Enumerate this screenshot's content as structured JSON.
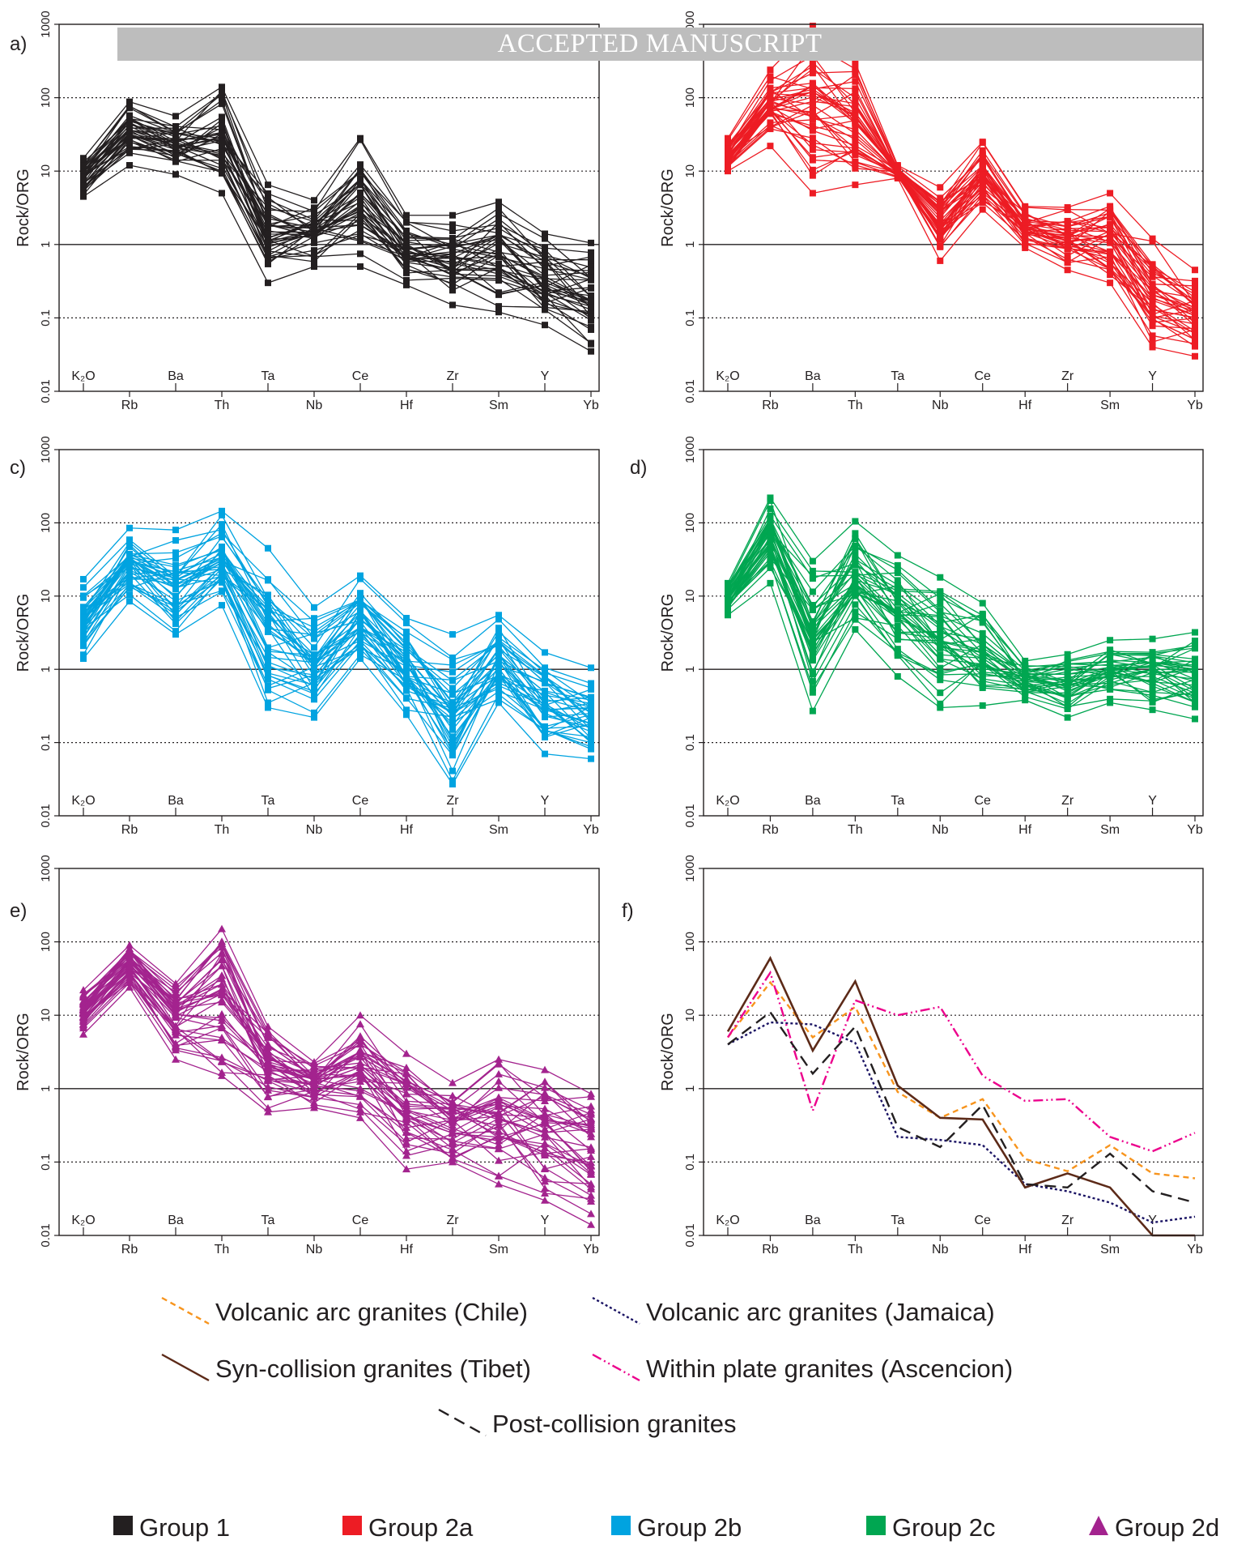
{
  "banner": "ACCEPTED MANUSCRIPT",
  "watermark": "ACCEPTED MANUSCRIPT",
  "elements": [
    "K2O",
    "Rb",
    "Ba",
    "Th",
    "Ta",
    "Nb",
    "Ce",
    "Hf",
    "Zr",
    "Sm",
    "Y",
    "Yb"
  ],
  "elements_display": [
    "K₂O",
    "Rb",
    "Ba",
    "Th",
    "Ta",
    "Nb",
    "Ce",
    "Hf",
    "Zr",
    "Sm",
    "Y",
    "Yb"
  ],
  "chart_data": [
    {
      "panel": "a)",
      "type": "line",
      "ylabel": "Rock/ORG",
      "yscale": "log",
      "ylim": [
        0.01,
        1000
      ],
      "yticks": [
        "0.01",
        "0.1",
        "1",
        "10",
        "100",
        "1000"
      ],
      "group": "Group 1",
      "color": "#231f20",
      "marker": "square",
      "envelope": {
        "upper": [
          15,
          88,
          56,
          140,
          6.5,
          4,
          28,
          2.5,
          2.5,
          3.8,
          1.4,
          1.05
        ],
        "lower": [
          4.5,
          12,
          9,
          5,
          0.3,
          0.5,
          0.5,
          0.28,
          0.15,
          0.12,
          0.08,
          0.035
        ]
      }
    },
    {
      "panel": "b)",
      "type": "line",
      "ylabel": "Rock/ORG",
      "yscale": "log",
      "ylim": [
        0.01,
        1000
      ],
      "yticks": [
        "0.01",
        "0.1",
        "1",
        "10",
        "100",
        "1000"
      ],
      "group": "Group 2a",
      "color": "#ed1c24",
      "marker": "square",
      "envelope": {
        "upper": [
          28,
          240,
          950,
          300,
          12,
          6,
          25,
          3.3,
          3.2,
          5,
          1.2,
          0.45
        ],
        "lower": [
          10,
          22,
          5,
          6.5,
          8,
          0.6,
          3,
          0.9,
          0.45,
          0.3,
          0.04,
          0.03
        ]
      }
    },
    {
      "panel": "c)",
      "type": "line",
      "ylabel": "Rock/ORG",
      "yscale": "log",
      "ylim": [
        0.01,
        1000
      ],
      "yticks": [
        "0.01",
        "0.1",
        "1",
        "10",
        "100",
        "1000"
      ],
      "group": "Group 2b",
      "color": "#00a3e0",
      "marker": "square",
      "envelope": {
        "upper": [
          17,
          85,
          80,
          145,
          45,
          7,
          19,
          5,
          3,
          5.5,
          1.7,
          1.05
        ],
        "lower": [
          1.4,
          8.5,
          3,
          7.5,
          0.3,
          0.22,
          1.4,
          0.24,
          0.027,
          0.35,
          0.07,
          0.06
        ]
      }
    },
    {
      "panel": "d)",
      "type": "line",
      "ylabel": "Rock/ORG",
      "yscale": "log",
      "ylim": [
        0.01,
        1000
      ],
      "yticks": [
        "0.01",
        "0.1",
        "1",
        "10",
        "100",
        "1000"
      ],
      "group": "Group 2c",
      "color": "#00a651",
      "marker": "square",
      "envelope": {
        "upper": [
          15,
          220,
          30,
          105,
          36,
          18,
          8,
          1.3,
          1.6,
          2.5,
          2.6,
          3.2
        ],
        "lower": [
          5.5,
          15,
          0.27,
          3.5,
          0.8,
          0.3,
          0.32,
          0.38,
          0.22,
          0.35,
          0.28,
          0.21
        ]
      }
    },
    {
      "panel": "e)",
      "type": "line",
      "ylabel": "Rock/ORG",
      "yscale": "log",
      "ylim": [
        0.01,
        1000
      ],
      "yticks": [
        "0.01",
        "0.1",
        "1",
        "10",
        "100",
        "1000"
      ],
      "group": "Group 2d",
      "color": "#a3238e",
      "marker": "triangle",
      "envelope": {
        "upper": [
          22,
          90,
          27,
          150,
          7,
          2.3,
          10,
          3,
          1.2,
          2.5,
          1.8,
          0.85
        ],
        "lower": [
          5.5,
          24,
          2.5,
          1.5,
          0.48,
          0.55,
          0.4,
          0.08,
          0.1,
          0.05,
          0.03,
          0.014
        ]
      }
    },
    {
      "panel": "f)",
      "type": "line",
      "ylabel": "Rock/ORG",
      "yscale": "log",
      "ylim": [
        0.01,
        1000
      ],
      "yticks": [
        "0.01",
        "0.1",
        "1",
        "10",
        "100",
        "1000"
      ],
      "series": [
        {
          "name": "Volcanic arc granites (Chile)",
          "color": "#f7941d",
          "dash": "7,5",
          "values": [
            5,
            28,
            5,
            13,
            0.9,
            0.4,
            0.72,
            0.11,
            0.075,
            0.17,
            0.07,
            0.06
          ]
        },
        {
          "name": "Volcanic arc granites (Jamaica)",
          "color": "#1b1464",
          "dash": "3,3",
          "values": [
            4,
            8,
            7.5,
            4.2,
            0.22,
            0.2,
            0.17,
            0.05,
            0.04,
            0.028,
            0.015,
            0.018
          ]
        },
        {
          "name": "Syn-collision granites (Tibet)",
          "color": "#5c2a18",
          "dash": "",
          "values": [
            6,
            60,
            3.3,
            29,
            1.1,
            0.4,
            0.38,
            0.045,
            0.07,
            0.045,
            0.01,
            0.01
          ]
        },
        {
          "name": "Within plate granites (Ascencion)",
          "color": "#ec008c",
          "dash": "12,4,2,4,2,4",
          "values": [
            5,
            38,
            0.5,
            16,
            10,
            13,
            1.5,
            0.68,
            0.72,
            0.22,
            0.14,
            0.25
          ]
        },
        {
          "name": "Post-collision granites",
          "color": "#231f20",
          "dash": "14,8",
          "values": [
            4,
            11,
            1.6,
            7,
            0.3,
            0.16,
            0.6,
            0.05,
            0.045,
            0.13,
            0.04,
            0.028
          ]
        }
      ]
    }
  ],
  "legend_lines": [
    {
      "name": "Volcanic arc granites (Chile)",
      "color": "#f7941d",
      "dash": "7,5"
    },
    {
      "name": "Volcanic arc granites (Jamaica)",
      "color": "#1b1464",
      "dash": "3,3"
    },
    {
      "name": "Syn-collision granites (Tibet)",
      "color": "#5c2a18",
      "dash": ""
    },
    {
      "name": "Within plate granites (Ascencion)",
      "color": "#ec008c",
      "dash": "12,4,2,4,2,4"
    },
    {
      "name": "Post-collision granites",
      "color": "#231f20",
      "dash": "14,8"
    }
  ],
  "legend_groups": [
    {
      "name": "Group 1",
      "color": "#231f20",
      "marker": "square"
    },
    {
      "name": "Group 2a",
      "color": "#ed1c24",
      "marker": "square"
    },
    {
      "name": "Group 2b",
      "color": "#00a3e0",
      "marker": "square"
    },
    {
      "name": "Group 2c",
      "color": "#00a651",
      "marker": "square"
    },
    {
      "name": "Group 2d",
      "color": "#a3238e",
      "marker": "triangle"
    }
  ]
}
